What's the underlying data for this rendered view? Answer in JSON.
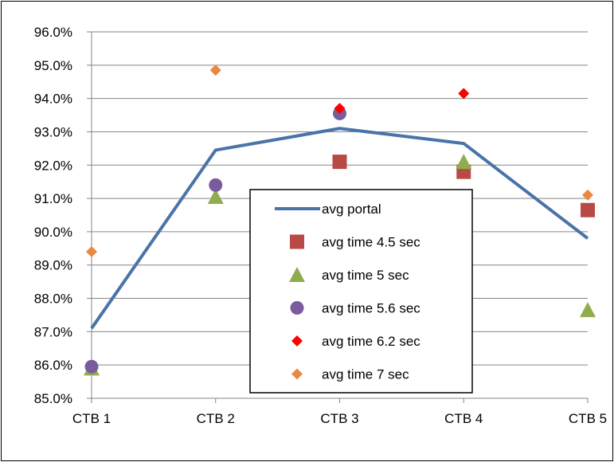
{
  "chart_data": {
    "type": "line",
    "categories": [
      "CTB 1",
      "CTB 2",
      "CTB 3",
      "CTB 4",
      "CTB 5"
    ],
    "ylim": [
      85.0,
      96.0
    ],
    "yticks": [
      "85.0%",
      "86.0%",
      "87.0%",
      "88.0%",
      "89.0%",
      "90.0%",
      "91.0%",
      "92.0%",
      "93.0%",
      "94.0%",
      "95.0%",
      "96.0%"
    ],
    "grid": true,
    "legend_position": "center",
    "series": [
      {
        "name": "avg portal",
        "kind": "line",
        "marker": "none",
        "color": "#4a73a8",
        "values": [
          87.1,
          92.45,
          93.1,
          92.65,
          89.8
        ]
      },
      {
        "name": "avg time 4.5 sec",
        "kind": "scatter",
        "marker": "square",
        "color": "#b84a46",
        "values": [
          null,
          null,
          92.1,
          91.8,
          90.65
        ]
      },
      {
        "name": "avg time 5 sec",
        "kind": "scatter",
        "marker": "triangle",
        "color": "#8fad4f",
        "values": [
          85.9,
          91.05,
          null,
          92.1,
          87.65
        ]
      },
      {
        "name": "avg time 5.6 sec",
        "kind": "scatter",
        "marker": "circle",
        "color": "#7a5c9e",
        "values": [
          85.95,
          91.4,
          93.55,
          null,
          null
        ]
      },
      {
        "name": "avg time 6.2 sec",
        "kind": "scatter",
        "marker": "diamond",
        "color": "#ff0000",
        "values": [
          null,
          null,
          93.7,
          94.15,
          null
        ]
      },
      {
        "name": "avg time 7 sec",
        "kind": "scatter",
        "marker": "diamond",
        "color": "#e9883e",
        "values": [
          89.4,
          94.85,
          null,
          null,
          91.1
        ]
      }
    ]
  }
}
